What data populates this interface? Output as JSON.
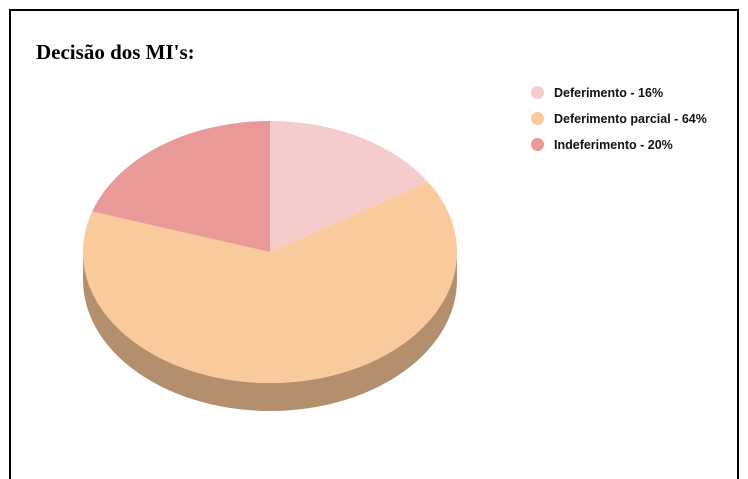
{
  "chart_data": {
    "type": "pie",
    "style": "3d",
    "title": "Decisão dos MI's:",
    "legend_position": "top-right",
    "slices": [
      {
        "label": "Deferimento - 16%",
        "value": 16,
        "color": "#F4CCCC",
        "side_color": "#C9A9A9"
      },
      {
        "label": "Deferimento parcial - 64%",
        "value": 64,
        "color": "#F9CB9C",
        "side_color": "#B38F6E"
      },
      {
        "label": "Indeferimento - 20%",
        "value": 20,
        "color": "#EA9999",
        "side_color": "#B77878"
      }
    ]
  }
}
